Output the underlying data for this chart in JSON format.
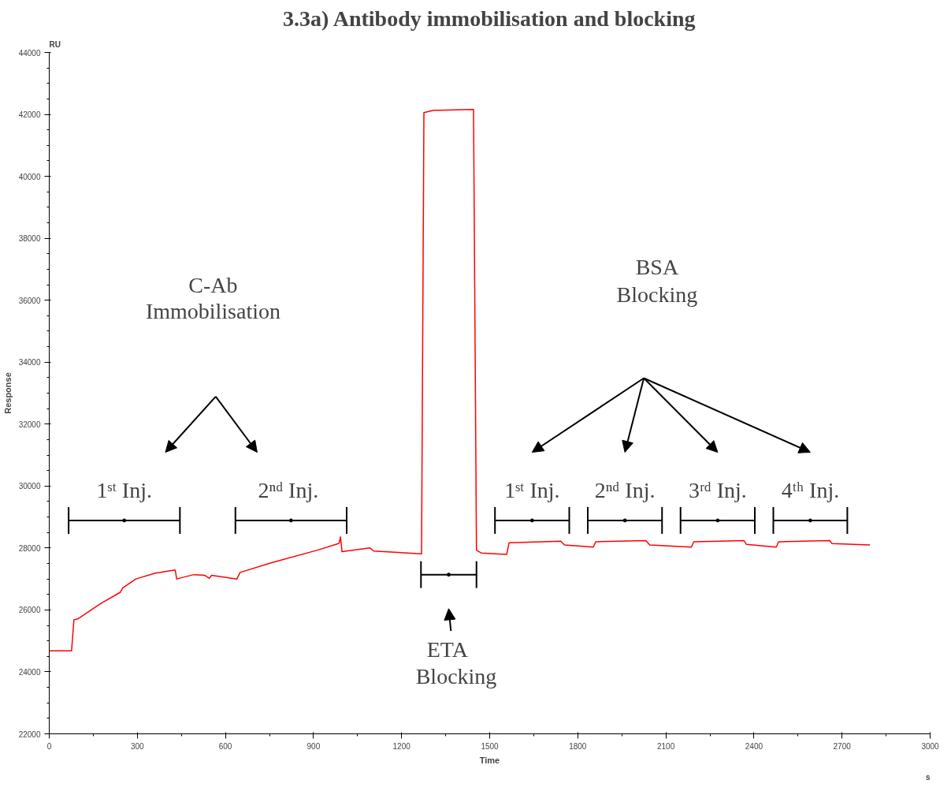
{
  "chart_data": {
    "type": "line",
    "title": "3.3a) Antibody immobilisation and blocking",
    "xlabel": "Time",
    "ylabel": "Response",
    "x": [
      0,
      76,
      84,
      97,
      124,
      176,
      242,
      250,
      295,
      361,
      429,
      434,
      492,
      529,
      545,
      553,
      639,
      650,
      755,
      913,
      987,
      992,
      997,
      1092,
      1105,
      1268,
      1276,
      1308,
      1445,
      1455,
      1471,
      1558,
      1566,
      1742,
      1755,
      1853,
      1861,
      2032,
      2045,
      2187,
      2195,
      2366,
      2374,
      2476,
      2484,
      2658,
      2666,
      2795
    ],
    "series": [
      {
        "color": "#ff0000",
        "values": [
          24680,
          24680,
          25680,
          25710,
          25880,
          26210,
          26570,
          26710,
          27000,
          27190,
          27290,
          27000,
          27140,
          27120,
          27020,
          27120,
          27000,
          27210,
          27520,
          27930,
          28150,
          28360,
          27880,
          28000,
          27900,
          27810,
          42060,
          42130,
          42160,
          27930,
          27840,
          27790,
          28170,
          28220,
          28100,
          28030,
          28200,
          28240,
          28100,
          28030,
          28200,
          28240,
          28120,
          28030,
          28200,
          28240,
          28140,
          28100
        ]
      },
      {
        "type": "scatter",
        "marker": "circle",
        "color": "#000000",
        "x": [
          255.5,
          823.5,
          1360.5,
          1644.5,
          1960.5,
          2276.5,
          2592
        ],
        "values": [
          28890,
          28890,
          27140,
          28890,
          28890,
          28890,
          28890
        ],
        "xerrors": [
          189.5,
          189.5,
          94.5,
          126.5,
          126.5,
          126.5,
          126
        ]
      }
    ],
    "xlim": [
      0,
      3000
    ],
    "ylim": [
      22000,
      44000
    ],
    "xticks": [
      0,
      300,
      600,
      900,
      1200,
      1500,
      1800,
      2100,
      2400,
      2700,
      3000
    ],
    "yticks": [
      22000,
      24000,
      26000,
      28000,
      30000,
      32000,
      34000,
      36000,
      38000,
      40000,
      42000,
      44000
    ],
    "grid": false,
    "marker": "none",
    "line_style": "solid",
    "annotations": [
      "RU",
      "s",
      "C-Ab",
      "Immobilisation",
      "BSA",
      "Blocking",
      "ETA",
      "Blocking",
      {
        "text": "1ˢᵗ Inj.",
        "x": 255.5,
        "y": 28890
      },
      {
        "text": "2ⁿᵈ  Inj.",
        "x": 823.5,
        "y": 28890
      },
      {
        "text": "1ˢᵗ Inj.",
        "x": 1644.5,
        "y": 28890
      },
      {
        "text": "2ⁿᵈ Inj.",
        "x": 1960.5,
        "y": 28890
      },
      {
        "text": "3ʳᵈ Inj.",
        "x": 2276.5,
        "y": 28890
      },
      {
        "text": "4ᵗʰ Inj.",
        "x": 2592,
        "y": 28890
      }
    ]
  }
}
